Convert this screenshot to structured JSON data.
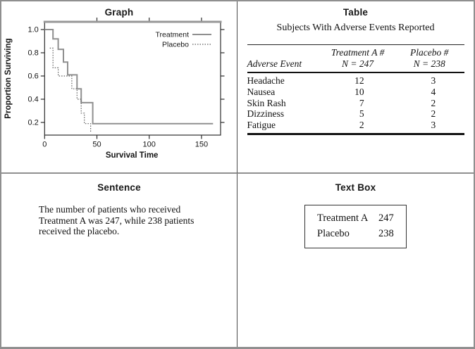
{
  "chart_data": {
    "type": "line",
    "subtype": "step-survival",
    "title": "Graph",
    "xlabel": "Survival Time",
    "ylabel": "Proportion Surviving",
    "xticks": [
      0,
      50,
      100,
      150
    ],
    "yticks": [
      0.2,
      0.4,
      0.6,
      0.8,
      1.0
    ],
    "xlim": [
      0,
      168
    ],
    "ylim": [
      0.08,
      1.07
    ],
    "grid": false,
    "legend_position": "top-right",
    "frame_top_color": "#979797",
    "axis_color": "#2b2b2b",
    "series": [
      {
        "name": "Treatment",
        "line": "solid",
        "color": "#8f8f8f",
        "points": [
          [
            0,
            1.0
          ],
          [
            8,
            1.0
          ],
          [
            8,
            0.92
          ],
          [
            13,
            0.92
          ],
          [
            13,
            0.83
          ],
          [
            18,
            0.83
          ],
          [
            18,
            0.72
          ],
          [
            22,
            0.72
          ],
          [
            22,
            0.61
          ],
          [
            31,
            0.61
          ],
          [
            31,
            0.49
          ],
          [
            35,
            0.49
          ],
          [
            35,
            0.37
          ],
          [
            46,
            0.37
          ],
          [
            46,
            0.19
          ],
          [
            161,
            0.19
          ]
        ]
      },
      {
        "name": "Placebo",
        "line": "dotted",
        "color": "#5c5c5c",
        "points": [
          [
            5,
            0.84
          ],
          [
            8,
            0.84
          ],
          [
            8,
            0.67
          ],
          [
            13,
            0.67
          ],
          [
            13,
            0.6
          ],
          [
            26,
            0.6
          ],
          [
            26,
            0.49
          ],
          [
            31,
            0.49
          ],
          [
            31,
            0.4
          ],
          [
            35,
            0.4
          ],
          [
            35,
            0.28
          ],
          [
            38,
            0.28
          ],
          [
            38,
            0.19
          ],
          [
            44,
            0.19
          ],
          [
            44,
            0.11
          ]
        ]
      }
    ]
  },
  "table": {
    "title": "Table",
    "subtitle": "Subjects With Adverse Events Reported",
    "col1_header": "Adverse Event",
    "col2_header_line1": "Treatment A #",
    "col2_header_line2": "N = 247",
    "col3_header_line1": "Placebo #",
    "col3_header_line2": "N = 238",
    "rows": [
      {
        "event": "Headache",
        "treatment": "12",
        "placebo": "3"
      },
      {
        "event": "Nausea",
        "treatment": "10",
        "placebo": "4"
      },
      {
        "event": "Skin Rash",
        "treatment": "7",
        "placebo": "2"
      },
      {
        "event": "Dizziness",
        "treatment": "5",
        "placebo": "2"
      },
      {
        "event": "Fatigue",
        "treatment": "2",
        "placebo": "3"
      }
    ]
  },
  "sentence": {
    "title": "Sentence",
    "lines": [
      "The number of patients who received",
      "Treatment A was 247, while 238 patients",
      "received the placebo."
    ]
  },
  "textbox": {
    "title": "Text Box",
    "rows": [
      {
        "label": "Treatment A",
        "value": "247"
      },
      {
        "label": "Placebo",
        "value": "238"
      }
    ]
  }
}
